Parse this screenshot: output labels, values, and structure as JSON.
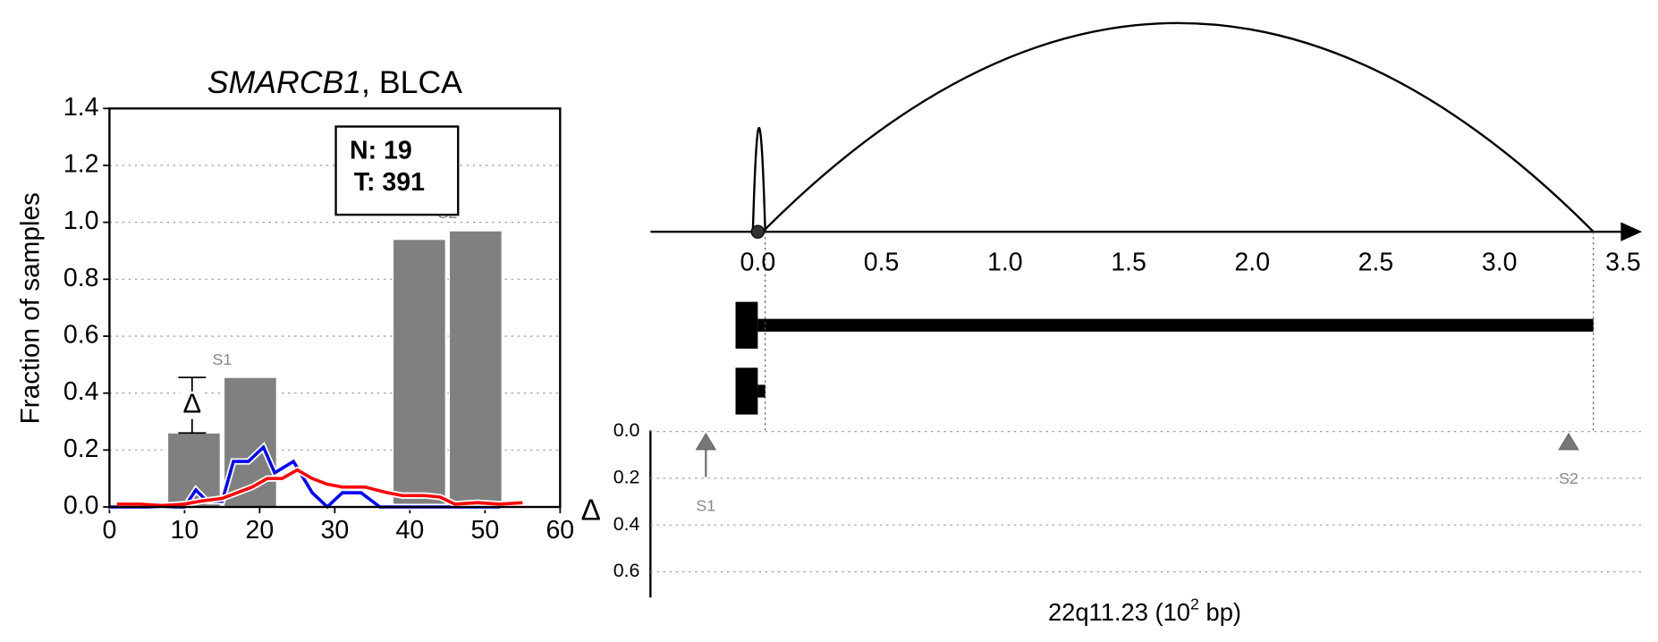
{
  "chart_data": [
    {
      "type": "bar",
      "title": {
        "gene": "SMARCB1",
        "rest": ", BLCA"
      },
      "ylabel": "Fraction of samples",
      "xlim": [
        0,
        60
      ],
      "ylim": [
        0,
        1.4
      ],
      "xticks": [
        0,
        10,
        20,
        30,
        40,
        50,
        60
      ],
      "yticks": [
        {
          "value": 0,
          "label": "0.0"
        },
        0.2,
        0.4,
        0.6,
        0.8,
        {
          "value": 1,
          "label": "1.0"
        },
        1.2,
        1.4
      ],
      "grid": true,
      "bars": {
        "color": "#808080",
        "x": [
          11.25,
          18.75,
          41.25,
          48.75
        ],
        "values": [
          0.26,
          0.455,
          0.94,
          0.97
        ]
      },
      "series": [
        {
          "color": "#0000ff",
          "x": [
            0,
            10,
            11.5,
            13,
            15,
            16.5,
            18.5,
            20.5,
            22,
            24.5,
            27,
            29,
            31,
            33.5,
            36,
            52
          ],
          "values": [
            0,
            0,
            0.06,
            0.02,
            0.02,
            0.16,
            0.16,
            0.21,
            0.12,
            0.16,
            0.05,
            0,
            0.05,
            0.05,
            0,
            0
          ]
        },
        {
          "color": "#ff0000",
          "x": [
            1,
            4,
            7,
            10,
            12,
            15,
            17,
            19,
            21,
            23,
            25,
            27,
            29,
            31,
            34,
            37,
            39,
            42,
            44,
            46,
            49,
            52,
            55
          ],
          "values": [
            0.01,
            0.01,
            0.005,
            0.01,
            0.02,
            0.03,
            0.05,
            0.07,
            0.1,
            0.1,
            0.13,
            0.1,
            0.08,
            0.07,
            0.07,
            0.05,
            0.04,
            0.04,
            0.035,
            0.01,
            0.015,
            0.01,
            0.015
          ]
        }
      ],
      "delta": {
        "symbol": "Δ",
        "x": 11,
        "low": 0.26,
        "high": 0.455
      },
      "groups": [
        {
          "label": "S1",
          "x": 15
        },
        {
          "label": "S2",
          "x": 45
        }
      ],
      "counts": {
        "normal": "N: 19",
        "tumor": "T: 391"
      }
    },
    {
      "type": "arc",
      "xlim": [
        -0.434,
        3.577
      ],
      "xticks": [
        {
          "value": 0,
          "label": "0.0"
        },
        0.5,
        {
          "value": 1,
          "label": "1.0"
        },
        1.5,
        {
          "value": 2,
          "label": "2.0"
        },
        2.5,
        {
          "value": 3,
          "label": "3.0"
        },
        3.5
      ],
      "xlabel": {
        "text": "22q11.23 (10",
        "sup": "2",
        "tail": " bp)"
      },
      "anchor": 0,
      "arcs": [
        {
          "start": -0.02,
          "end": 0.03
        },
        {
          "start": 0.02,
          "end": 3.38
        }
      ],
      "transcripts": [
        {
          "start": -0.09,
          "end": 3.38
        },
        {
          "start": -0.09,
          "end": 0.03
        }
      ],
      "delta_label": "Δ",
      "dlim": [
        0,
        0.71
      ],
      "dticks": [
        {
          "value": 0,
          "label": "0.0"
        },
        0.2,
        0.4,
        0.6
      ],
      "markers": [
        {
          "name": "S1",
          "x": -0.21,
          "delta": 0.195
        },
        {
          "name": "S2",
          "x": 3.28,
          "delta": 0.03
        }
      ]
    }
  ]
}
